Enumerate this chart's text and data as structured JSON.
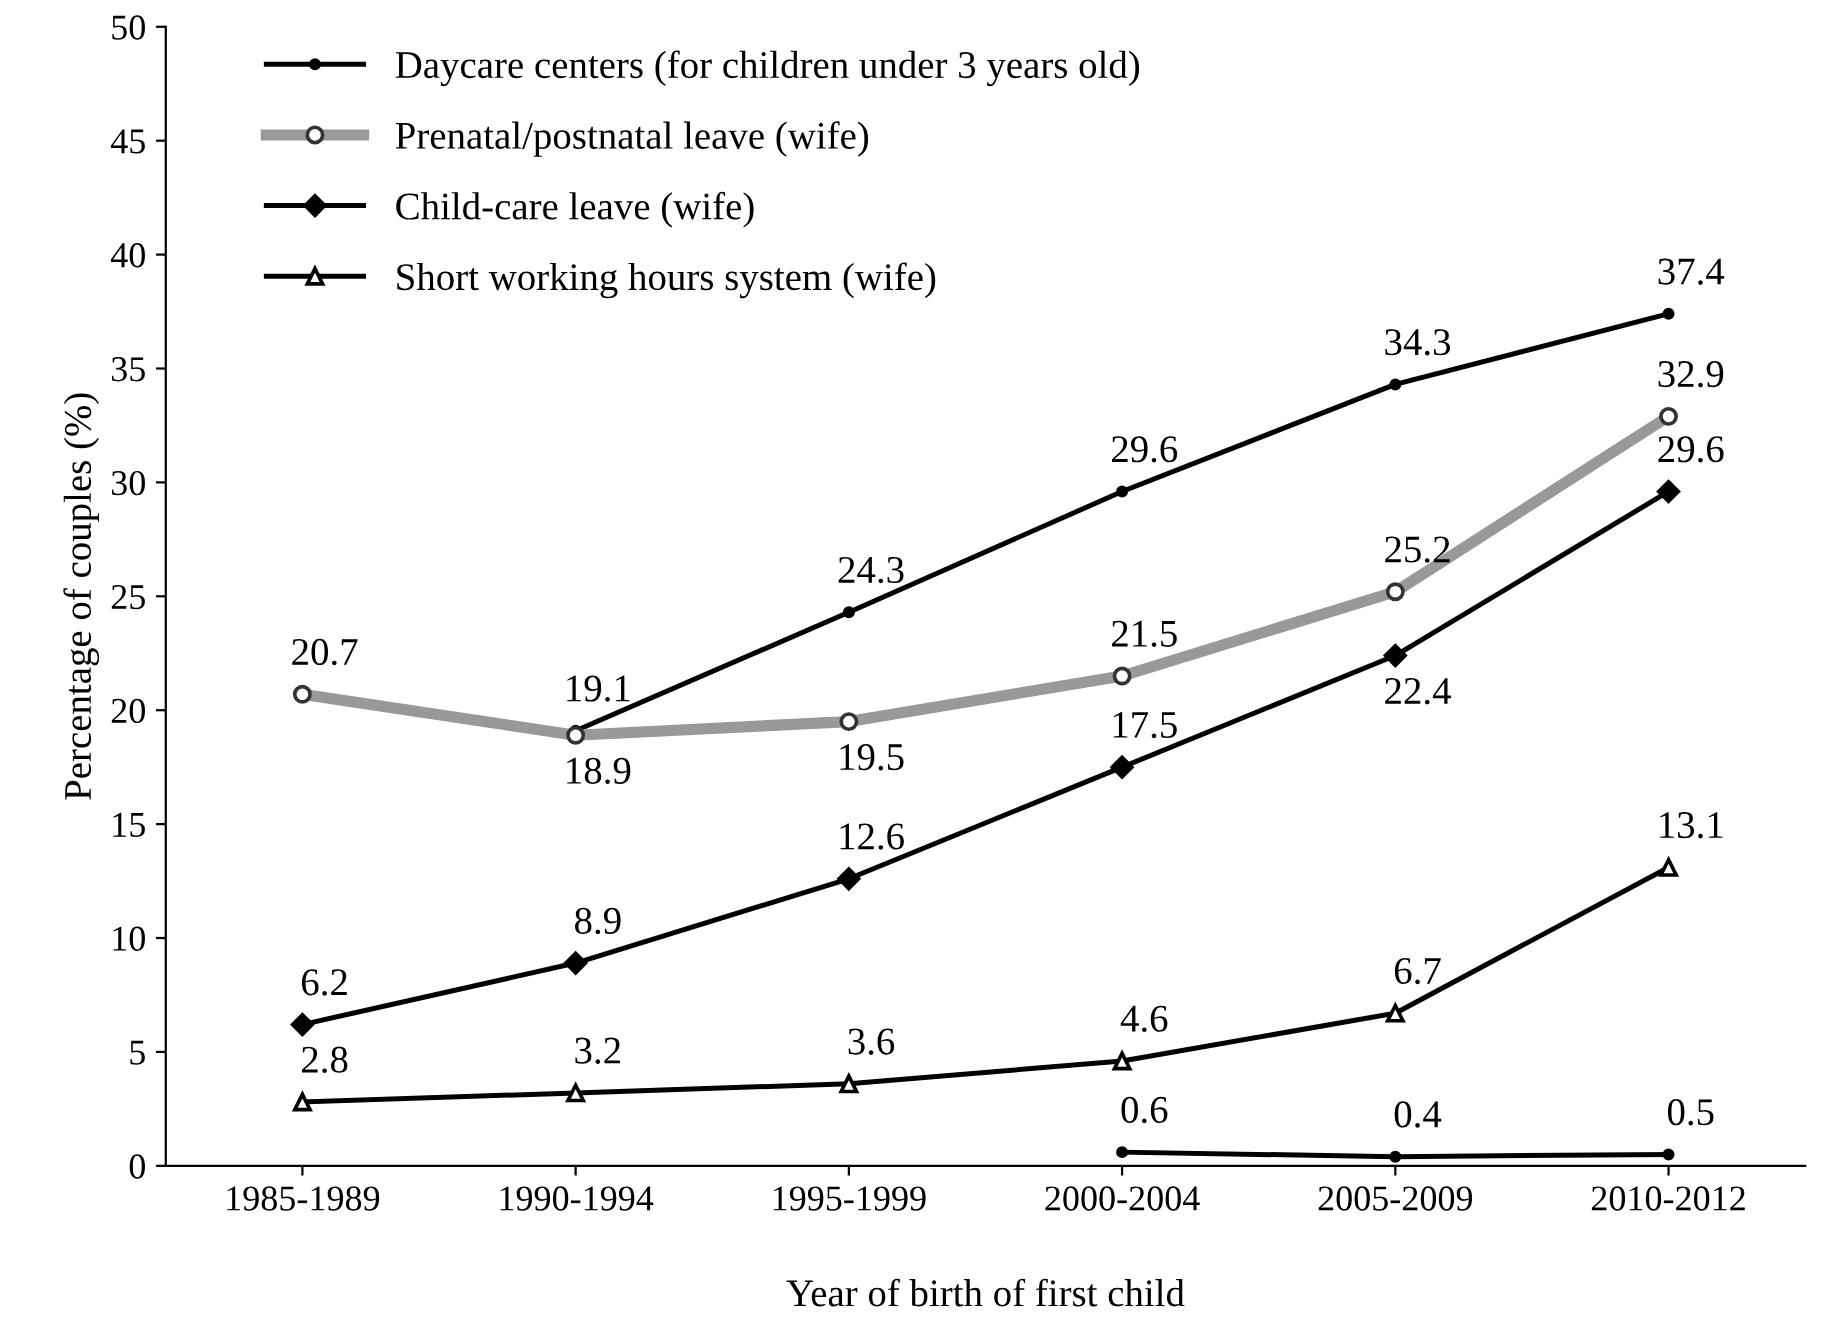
{
  "chart_data": {
    "type": "line",
    "xlabel": "Year of birth of first child",
    "ylabel": "Percentage of couples (%)",
    "categories": [
      "1985-1989",
      "1990-1994",
      "1995-1999",
      "2000-2004",
      "2005-2009",
      "2010-2012"
    ],
    "series": [
      {
        "name": "Daycare centers (for children under 3 years old)",
        "color": "#000000",
        "marker": "circle",
        "values": [
          null,
          19.1,
          24.3,
          29.6,
          34.3,
          37.4
        ]
      },
      {
        "name": "Prenatal/postnatal leave (wife)",
        "color": "#999999",
        "marker": "circle",
        "values": [
          20.7,
          18.9,
          19.5,
          21.5,
          25.2,
          32.9
        ]
      },
      {
        "name": "Child-care leave (wife)",
        "color": "#000000",
        "marker": "diamond",
        "values": [
          6.2,
          8.9,
          12.6,
          17.5,
          22.4,
          29.6
        ]
      },
      {
        "name": "Short working hours system (wife)",
        "color": "#000000",
        "marker": "triangle",
        "values": [
          2.8,
          3.2,
          3.6,
          4.6,
          6.7,
          13.1
        ]
      },
      {
        "color": "#000000",
        "marker": "circle",
        "values": [
          null,
          null,
          null,
          0.6,
          0.4,
          0.5
        ]
      }
    ],
    "ylim": [
      0,
      50
    ],
    "yticks": [
      0,
      5,
      10,
      15,
      20,
      25,
      30,
      35,
      40,
      45,
      50
    ],
    "data_labels": true,
    "legend": "top left",
    "grid": false
  }
}
